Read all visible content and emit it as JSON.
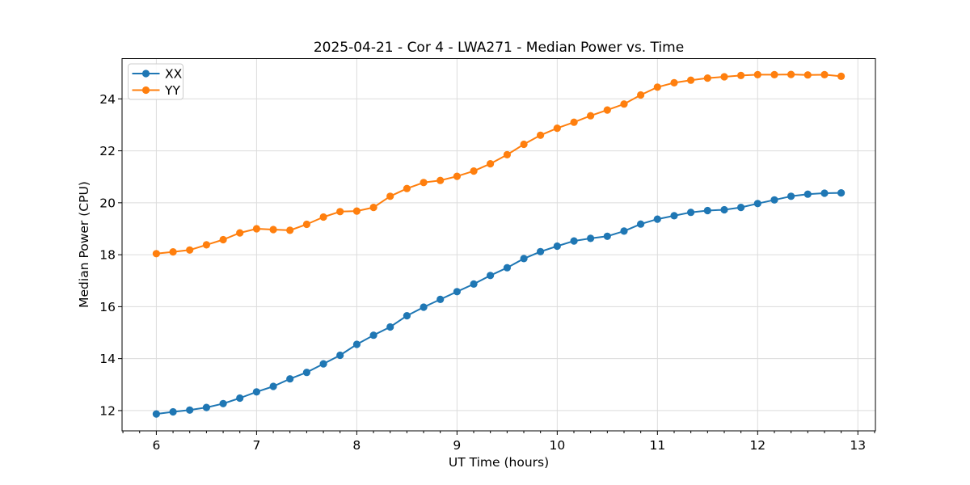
{
  "window": {
    "background": "#ffffff"
  },
  "chart_data": {
    "type": "line",
    "title": "2025-04-21 - Cor 4 - LWA271 - Median Power vs. Time",
    "xlabel": "UT Time (hours)",
    "ylabel": "Median Power (CPU)",
    "xlim": [
      5.658,
      13.175
    ],
    "ylim": [
      11.22,
      25.55
    ],
    "x_ticks": [
      6,
      7,
      8,
      9,
      10,
      11,
      12,
      13
    ],
    "y_ticks": [
      12,
      14,
      16,
      18,
      20,
      22,
      24
    ],
    "x_minor_tick_step": 0.16667,
    "grid": "major-both-axes",
    "legend_position": "upper-left",
    "x": [
      6.0,
      6.167,
      6.333,
      6.5,
      6.667,
      6.833,
      7.0,
      7.167,
      7.333,
      7.5,
      7.667,
      7.833,
      8.0,
      8.167,
      8.333,
      8.5,
      8.667,
      8.833,
      9.0,
      9.167,
      9.333,
      9.5,
      9.667,
      9.833,
      10.0,
      10.167,
      10.333,
      10.5,
      10.667,
      10.833,
      11.0,
      11.167,
      11.333,
      11.5,
      11.667,
      11.833,
      12.0,
      12.167,
      12.333,
      12.5,
      12.667,
      12.833
    ],
    "series": [
      {
        "name": "XX",
        "color": "#1f77b4",
        "marker": "circle",
        "values": [
          11.87,
          11.95,
          12.02,
          12.12,
          12.27,
          12.48,
          12.72,
          12.93,
          13.22,
          13.47,
          13.8,
          14.13,
          14.55,
          14.9,
          15.22,
          15.65,
          15.98,
          16.28,
          16.58,
          16.87,
          17.2,
          17.5,
          17.85,
          18.12,
          18.33,
          18.53,
          18.63,
          18.71,
          18.91,
          19.18,
          19.37,
          19.5,
          19.63,
          19.7,
          19.73,
          19.82,
          19.97,
          20.11,
          20.25,
          20.33,
          20.37,
          20.38
        ]
      },
      {
        "name": "YY",
        "color": "#ff7f0e",
        "marker": "circle",
        "values": [
          18.04,
          18.11,
          18.18,
          18.38,
          18.58,
          18.84,
          19.0,
          18.97,
          18.94,
          19.17,
          19.45,
          19.66,
          19.68,
          19.82,
          20.25,
          20.55,
          20.78,
          20.86,
          21.02,
          21.22,
          21.5,
          21.85,
          22.25,
          22.6,
          22.87,
          23.1,
          23.35,
          23.57,
          23.8,
          24.15,
          24.45,
          24.62,
          24.72,
          24.8,
          24.85,
          24.9,
          24.93,
          24.93,
          24.94,
          24.92,
          24.93,
          24.87
        ]
      }
    ]
  },
  "colors": {
    "grid": "#dcdcdc",
    "spine": "#000000",
    "tick": "#000000",
    "text": "#000000",
    "legend_border": "#cccccc",
    "legend_background": "#ffffff"
  }
}
